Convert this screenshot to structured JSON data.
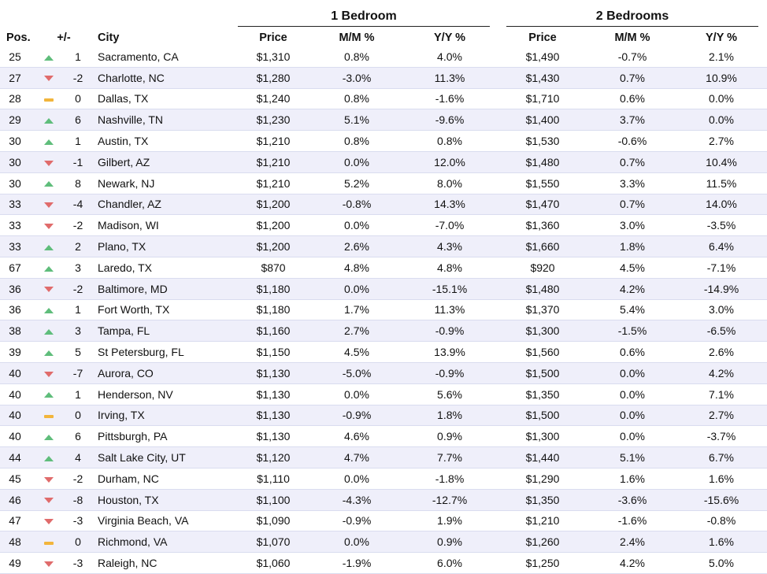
{
  "groups": {
    "one_bedroom": "1 Bedroom",
    "two_bedrooms": "2 Bedrooms"
  },
  "headers": {
    "pos": "Pos.",
    "change": "+/-",
    "city": "City",
    "price1": "Price",
    "mm1": "M/M %",
    "yy1": "Y/Y %",
    "price2": "Price",
    "mm2": "M/M %",
    "yy2": "Y/Y %"
  },
  "colors": {
    "up": "#5fbd7b",
    "down": "#e06b6b",
    "flat": "#f2b53c",
    "stripe": "#efeffa"
  },
  "rows": [
    {
      "pos": "25",
      "trend": "up",
      "change": "1",
      "city": "Sacramento, CA",
      "price1": "$1,310",
      "mm1": "0.8%",
      "yy1": "4.0%",
      "price2": "$1,490",
      "mm2": "-0.7%",
      "yy2": "2.1%"
    },
    {
      "pos": "27",
      "trend": "down",
      "change": "-2",
      "city": "Charlotte, NC",
      "price1": "$1,280",
      "mm1": "-3.0%",
      "yy1": "11.3%",
      "price2": "$1,430",
      "mm2": "0.7%",
      "yy2": "10.9%"
    },
    {
      "pos": "28",
      "trend": "flat",
      "change": "0",
      "city": "Dallas, TX",
      "price1": "$1,240",
      "mm1": "0.8%",
      "yy1": "-1.6%",
      "price2": "$1,710",
      "mm2": "0.6%",
      "yy2": "0.0%"
    },
    {
      "pos": "29",
      "trend": "up",
      "change": "6",
      "city": "Nashville, TN",
      "price1": "$1,230",
      "mm1": "5.1%",
      "yy1": "-9.6%",
      "price2": "$1,400",
      "mm2": "3.7%",
      "yy2": "0.0%"
    },
    {
      "pos": "30",
      "trend": "up",
      "change": "1",
      "city": "Austin, TX",
      "price1": "$1,210",
      "mm1": "0.8%",
      "yy1": "0.8%",
      "price2": "$1,530",
      "mm2": "-0.6%",
      "yy2": "2.7%"
    },
    {
      "pos": "30",
      "trend": "down",
      "change": "-1",
      "city": "Gilbert, AZ",
      "price1": "$1,210",
      "mm1": "0.0%",
      "yy1": "12.0%",
      "price2": "$1,480",
      "mm2": "0.7%",
      "yy2": "10.4%"
    },
    {
      "pos": "30",
      "trend": "up",
      "change": "8",
      "city": "Newark, NJ",
      "price1": "$1,210",
      "mm1": "5.2%",
      "yy1": "8.0%",
      "price2": "$1,550",
      "mm2": "3.3%",
      "yy2": "11.5%"
    },
    {
      "pos": "33",
      "trend": "down",
      "change": "-4",
      "city": "Chandler, AZ",
      "price1": "$1,200",
      "mm1": "-0.8%",
      "yy1": "14.3%",
      "price2": "$1,470",
      "mm2": "0.7%",
      "yy2": "14.0%"
    },
    {
      "pos": "33",
      "trend": "down",
      "change": "-2",
      "city": "Madison, WI",
      "price1": "$1,200",
      "mm1": "0.0%",
      "yy1": "-7.0%",
      "price2": "$1,360",
      "mm2": "3.0%",
      "yy2": "-3.5%"
    },
    {
      "pos": "33",
      "trend": "up",
      "change": "2",
      "city": "Plano, TX",
      "price1": "$1,200",
      "mm1": "2.6%",
      "yy1": "4.3%",
      "price2": "$1,660",
      "mm2": "1.8%",
      "yy2": "6.4%"
    },
    {
      "pos": "67",
      "trend": "up",
      "change": "3",
      "city": "Laredo, TX",
      "price1": "$870",
      "mm1": "4.8%",
      "yy1": "4.8%",
      "price2": "$920",
      "mm2": "4.5%",
      "yy2": "-7.1%"
    },
    {
      "pos": "36",
      "trend": "down",
      "change": "-2",
      "city": "Baltimore, MD",
      "price1": "$1,180",
      "mm1": "0.0%",
      "yy1": "-15.1%",
      "price2": "$1,480",
      "mm2": "4.2%",
      "yy2": "-14.9%"
    },
    {
      "pos": "36",
      "trend": "up",
      "change": "1",
      "city": "Fort Worth, TX",
      "price1": "$1,180",
      "mm1": "1.7%",
      "yy1": "11.3%",
      "price2": "$1,370",
      "mm2": "5.4%",
      "yy2": "3.0%"
    },
    {
      "pos": "38",
      "trend": "up",
      "change": "3",
      "city": "Tampa, FL",
      "price1": "$1,160",
      "mm1": "2.7%",
      "yy1": "-0.9%",
      "price2": "$1,300",
      "mm2": "-1.5%",
      "yy2": "-6.5%"
    },
    {
      "pos": "39",
      "trend": "up",
      "change": "5",
      "city": "St Petersburg, FL",
      "price1": "$1,150",
      "mm1": "4.5%",
      "yy1": "13.9%",
      "price2": "$1,560",
      "mm2": "0.6%",
      "yy2": "2.6%"
    },
    {
      "pos": "40",
      "trend": "down",
      "change": "-7",
      "city": "Aurora, CO",
      "price1": "$1,130",
      "mm1": "-5.0%",
      "yy1": "-0.9%",
      "price2": "$1,500",
      "mm2": "0.0%",
      "yy2": "4.2%"
    },
    {
      "pos": "40",
      "trend": "up",
      "change": "1",
      "city": "Henderson, NV",
      "price1": "$1,130",
      "mm1": "0.0%",
      "yy1": "5.6%",
      "price2": "$1,350",
      "mm2": "0.0%",
      "yy2": "7.1%"
    },
    {
      "pos": "40",
      "trend": "flat",
      "change": "0",
      "city": "Irving, TX",
      "price1": "$1,130",
      "mm1": "-0.9%",
      "yy1": "1.8%",
      "price2": "$1,500",
      "mm2": "0.0%",
      "yy2": "2.7%"
    },
    {
      "pos": "40",
      "trend": "up",
      "change": "6",
      "city": "Pittsburgh, PA",
      "price1": "$1,130",
      "mm1": "4.6%",
      "yy1": "0.9%",
      "price2": "$1,300",
      "mm2": "0.0%",
      "yy2": "-3.7%"
    },
    {
      "pos": "44",
      "trend": "up",
      "change": "4",
      "city": "Salt Lake City, UT",
      "price1": "$1,120",
      "mm1": "4.7%",
      "yy1": "7.7%",
      "price2": "$1,440",
      "mm2": "5.1%",
      "yy2": "6.7%"
    },
    {
      "pos": "45",
      "trend": "down",
      "change": "-2",
      "city": "Durham, NC",
      "price1": "$1,110",
      "mm1": "0.0%",
      "yy1": "-1.8%",
      "price2": "$1,290",
      "mm2": "1.6%",
      "yy2": "1.6%"
    },
    {
      "pos": "46",
      "trend": "down",
      "change": "-8",
      "city": "Houston, TX",
      "price1": "$1,100",
      "mm1": "-4.3%",
      "yy1": "-12.7%",
      "price2": "$1,350",
      "mm2": "-3.6%",
      "yy2": "-15.6%"
    },
    {
      "pos": "47",
      "trend": "down",
      "change": "-3",
      "city": "Virginia Beach, VA",
      "price1": "$1,090",
      "mm1": "-0.9%",
      "yy1": "1.9%",
      "price2": "$1,210",
      "mm2": "-1.6%",
      "yy2": "-0.8%"
    },
    {
      "pos": "48",
      "trend": "flat",
      "change": "0",
      "city": "Richmond, VA",
      "price1": "$1,070",
      "mm1": "0.0%",
      "yy1": "0.9%",
      "price2": "$1,260",
      "mm2": "2.4%",
      "yy2": "1.6%"
    },
    {
      "pos": "49",
      "trend": "down",
      "change": "-3",
      "city": "Raleigh, NC",
      "price1": "$1,060",
      "mm1": "-1.9%",
      "yy1": "6.0%",
      "price2": "$1,250",
      "mm2": "4.2%",
      "yy2": "5.0%"
    }
  ]
}
